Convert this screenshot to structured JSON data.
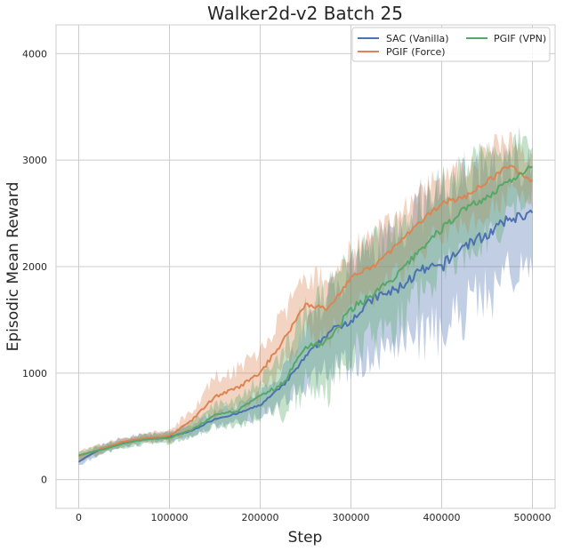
{
  "chart_data": {
    "type": "line",
    "title": "Walker2d-v2 Batch 25",
    "xlabel": "Step",
    "ylabel": "Episodic Mean Reward",
    "xlim": [
      -25000,
      525000
    ],
    "ylim": [
      -270,
      4270
    ],
    "xticks": [
      0,
      100000,
      200000,
      300000,
      400000,
      500000
    ],
    "xtick_labels": [
      "0",
      "100000",
      "200000",
      "300000",
      "400000",
      "500000"
    ],
    "yticks": [
      0,
      1000,
      2000,
      3000,
      4000
    ],
    "ytick_labels": [
      "0",
      "1000",
      "2000",
      "3000",
      "4000"
    ],
    "grid": true,
    "legend": {
      "position": "top-right",
      "ncol": 2
    },
    "x": [
      0,
      25000,
      50000,
      75000,
      100000,
      125000,
      150000,
      175000,
      200000,
      225000,
      250000,
      275000,
      300000,
      325000,
      350000,
      375000,
      400000,
      425000,
      450000,
      475000,
      500000
    ],
    "series": [
      {
        "name": "SAC (Vanilla)",
        "color": "#4c72b0",
        "values": [
          170,
          290,
          350,
          390,
          400,
          460,
          570,
          620,
          700,
          880,
          1150,
          1380,
          1500,
          1700,
          1780,
          1950,
          2000,
          2200,
          2300,
          2450,
          2500
        ],
        "spread": [
          60,
          60,
          60,
          60,
          60,
          80,
          100,
          120,
          150,
          250,
          400,
          550,
          650,
          750,
          850,
          900,
          950,
          900,
          850,
          800,
          750
        ]
      },
      {
        "name": "PGIF (Force)",
        "color": "#dd8452",
        "values": [
          220,
          290,
          360,
          390,
          410,
          560,
          780,
          860,
          1000,
          1300,
          1650,
          1600,
          1900,
          2000,
          2200,
          2400,
          2600,
          2650,
          2800,
          2950,
          2800
        ],
        "spread": [
          60,
          60,
          60,
          60,
          80,
          150,
          250,
          280,
          300,
          350,
          380,
          400,
          400,
          400,
          420,
          420,
          400,
          400,
          400,
          400,
          300
        ]
      },
      {
        "name": "PGIF (VPN)",
        "color": "#55a868",
        "values": [
          230,
          280,
          340,
          380,
          390,
          470,
          600,
          650,
          780,
          900,
          1250,
          1300,
          1600,
          1750,
          1900,
          2150,
          2350,
          2550,
          2650,
          2800,
          2950
        ],
        "spread": [
          60,
          60,
          60,
          60,
          70,
          100,
          150,
          180,
          250,
          400,
          550,
          650,
          650,
          650,
          650,
          650,
          600,
          600,
          550,
          500,
          400
        ]
      }
    ]
  }
}
